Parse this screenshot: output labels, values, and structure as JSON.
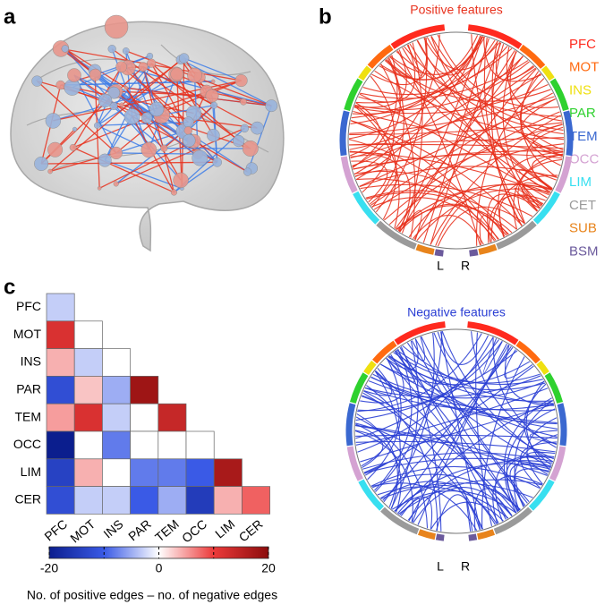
{
  "panels": {
    "a": "a",
    "b": "b",
    "c": "c"
  },
  "chord": {
    "positive": {
      "title": "Positive features",
      "color": "#e8321e"
    },
    "negative": {
      "title": "Negative features",
      "color": "#2b3fd4"
    },
    "left": "L",
    "right": "R",
    "regions": [
      {
        "name": "PFC",
        "color": "#ff2a1e"
      },
      {
        "name": "MOT",
        "color": "#ff6a10"
      },
      {
        "name": "INS",
        "color": "#efe010"
      },
      {
        "name": "PAR",
        "color": "#2ed12e"
      },
      {
        "name": "TEM",
        "color": "#3a68d0"
      },
      {
        "name": "OCC",
        "color": "#d4a2d2"
      },
      {
        "name": "LIM",
        "color": "#38dff0"
      },
      {
        "name": "CET",
        "color": "#9a9a9a"
      },
      {
        "name": "SUB",
        "color": "#e8841c"
      },
      {
        "name": "BSM",
        "color": "#6b5a9c"
      }
    ]
  },
  "chart_data": {
    "type": "heatmap",
    "categories": [
      "PFC",
      "MOT",
      "INS",
      "PAR",
      "TEM",
      "OCC",
      "LIM",
      "CER"
    ],
    "values": [
      [
        -3
      ],
      [
        12,
        0
      ],
      [
        4,
        -3,
        0
      ],
      [
        -12,
        3,
        -5,
        18
      ],
      [
        5,
        12,
        -3,
        0,
        14
      ],
      [
        -20,
        0,
        -8,
        0,
        0,
        0
      ],
      [
        -14,
        4,
        0,
        -8,
        -8,
        -10,
        17
      ],
      [
        -12,
        -3,
        -3,
        -10,
        -5,
        -15,
        4,
        8
      ]
    ],
    "zlim": [
      -20,
      20
    ],
    "zticks": [
      -20,
      0,
      20
    ],
    "zminor": [
      -10,
      10
    ],
    "colors": [
      "#0b1e8e",
      "#3a5ae6",
      "#ffffff",
      "#ec3a3a",
      "#8b0c0c"
    ],
    "zlabel": "No. of positive edges – no. of negative edges"
  }
}
